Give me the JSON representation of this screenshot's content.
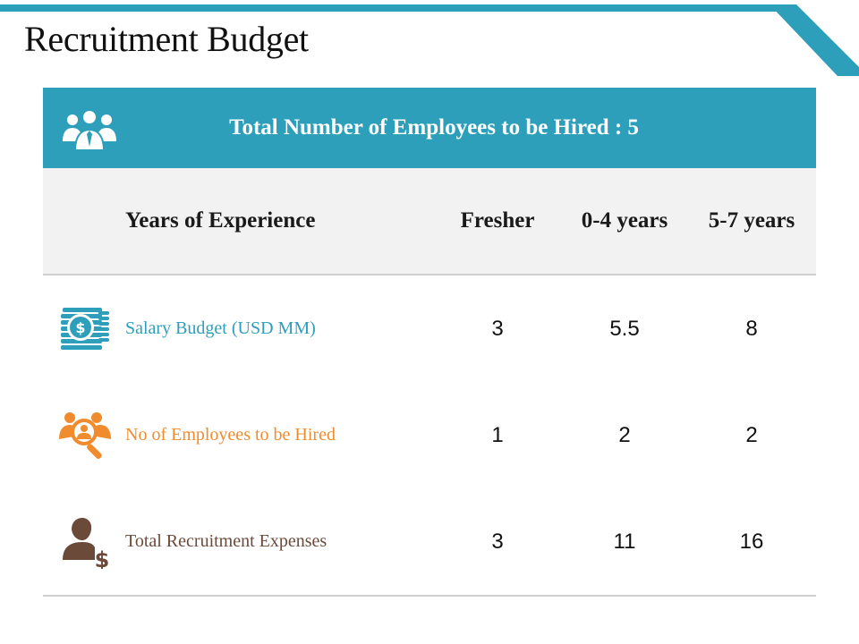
{
  "page": {
    "title": "Recruitment Budget"
  },
  "colors": {
    "accent": "#2e9fba",
    "teal": "#2e9fba",
    "orange": "#f08c2e",
    "brown": "#6b4a3a",
    "header_bg": "#f2f2f2"
  },
  "banner": {
    "text": "Total Number of Employees to be Hired : 5",
    "icon": "group-icon"
  },
  "table": {
    "headers": {
      "experience": "Years of Experience",
      "fresher": "Fresher",
      "exp_0_4": "0-4 years",
      "exp_5_7": "5-7 years"
    },
    "rows": [
      {
        "label": "Salary Budget (USD MM)",
        "icon": "money-icon",
        "color": "#2e9fba",
        "values": [
          "3",
          "5.5",
          "8"
        ]
      },
      {
        "label": "No of Employees to be Hired",
        "icon": "search-people-icon",
        "color": "#f08c2e",
        "values": [
          "1",
          "2",
          "2"
        ]
      },
      {
        "label": "Total Recruitment Expenses",
        "icon": "person-dollar-icon",
        "color": "#6b4a3a",
        "values": [
          "3",
          "11",
          "16"
        ]
      }
    ]
  }
}
